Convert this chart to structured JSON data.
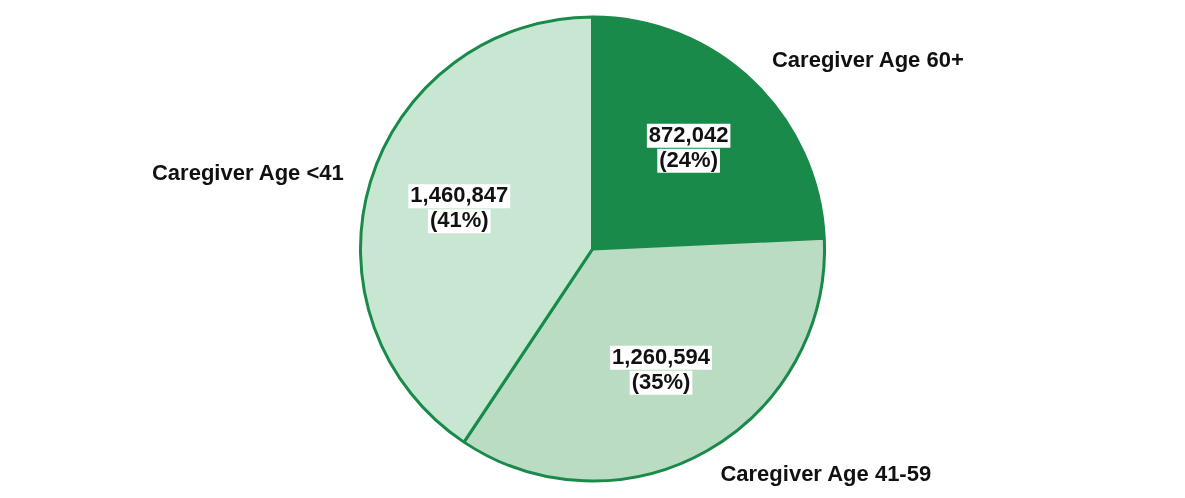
{
  "chart_data": {
    "type": "pie",
    "categories": [
      "Caregiver Age 60+",
      "Caregiver Age 41-59",
      "Caregiver Age <41"
    ],
    "values": [
      872042,
      1260594,
      1460847
    ],
    "colors": [
      "#1a8a4a",
      "#b9dcc3",
      "#c8e7d2"
    ],
    "value_labels": [
      "872,042\n(24%)",
      "1,260,594\n(35%)",
      "1,460,847\n(41%)"
    ],
    "legend": false
  }
}
